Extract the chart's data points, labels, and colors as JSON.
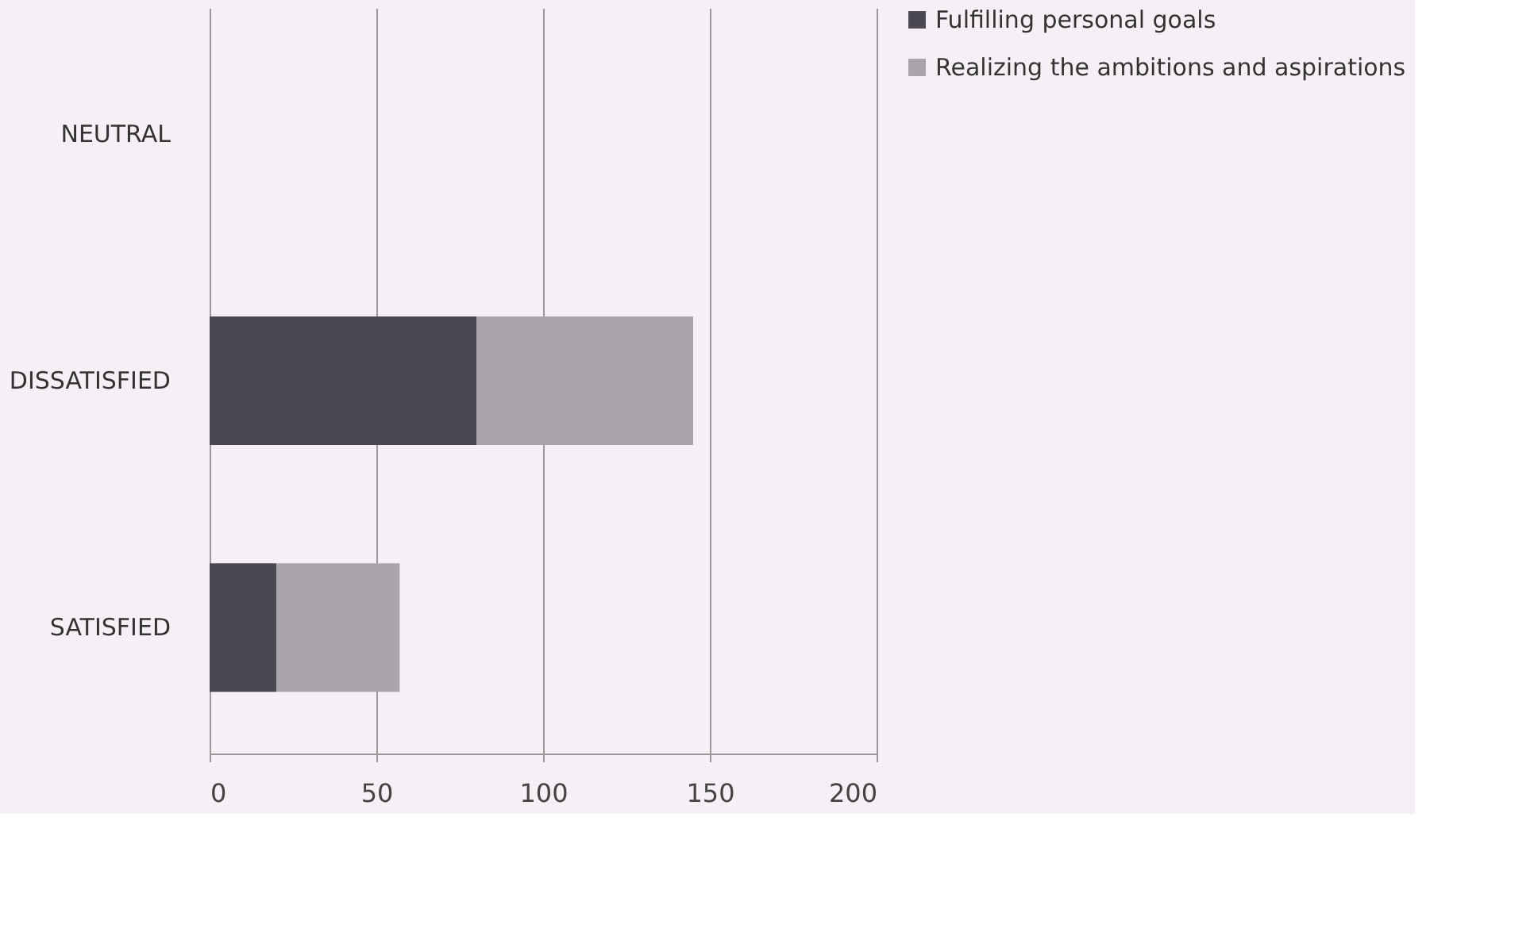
{
  "chart_data": {
    "type": "bar",
    "orientation": "horizontal",
    "stacked": true,
    "categories": [
      "NEUTRAL",
      "DISSATISFIED",
      "SATISFIED"
    ],
    "series": [
      {
        "name": "Fulfilling personal goals",
        "color": "#4a4850",
        "values": [
          0,
          80,
          20
        ]
      },
      {
        "name": "Realizing the ambitions and aspirations",
        "color": "#a8a4aa",
        "values": [
          0,
          65,
          37
        ]
      }
    ],
    "xlim": [
      0,
      200
    ],
    "xticks": [
      0,
      50,
      100,
      150,
      200
    ],
    "grid": "x",
    "legend": "right"
  }
}
